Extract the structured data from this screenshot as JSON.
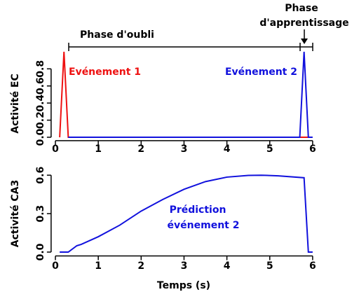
{
  "chart_data": [
    {
      "type": "line",
      "ylabel": "Activité EC",
      "xlim": [
        -0.1,
        6.1
      ],
      "xticks": [
        0,
        1,
        2,
        3,
        4,
        5,
        6
      ],
      "ylim": [
        -0.04,
        1.04
      ],
      "yticks": [
        {
          "value": 0,
          "label": "0.0"
        },
        0.2,
        0.4,
        0.6,
        0.8
      ],
      "series": [
        {
          "name": "Evénement 1",
          "color": "#ee1111",
          "x": [
            0.1,
            0.2,
            0.3,
            5.7,
            5.9
          ],
          "values": [
            0,
            1,
            0,
            0,
            0
          ]
        },
        {
          "name": "Evénement 2",
          "color": "#1111dd",
          "x": [
            0.3,
            5.7,
            5.8,
            5.9,
            6.0
          ],
          "values": [
            0,
            0,
            1,
            0,
            0
          ]
        }
      ],
      "annotations": [
        "Phase d'oubli",
        "Phase",
        "d'apprentissage"
      ]
    },
    {
      "type": "line",
      "ylabel": "Activité CA3",
      "xlabel": "Temps (s)",
      "xlim": [
        -0.1,
        6.1
      ],
      "xticks": [
        0,
        1,
        2,
        3,
        4,
        5,
        6
      ],
      "ylim": [
        -0.03,
        0.63
      ],
      "yticks": [
        {
          "value": 0,
          "label": "0.0"
        },
        0.3,
        0.6
      ],
      "series": [
        {
          "name": "Prédiction événement 2",
          "color": "#1111dd",
          "x": [
            0.1,
            0.3,
            0.5,
            0.6,
            0.8,
            1.0,
            1.5,
            2.0,
            2.5,
            3.0,
            3.5,
            4.0,
            4.5,
            4.8,
            5.2,
            5.8,
            5.9,
            6.0
          ],
          "values": [
            0,
            0,
            0.05,
            0.06,
            0.09,
            0.12,
            0.21,
            0.32,
            0.41,
            0.49,
            0.55,
            0.585,
            0.598,
            0.6,
            0.595,
            0.58,
            0,
            0
          ]
        }
      ],
      "annotations": [
        "Prédiction",
        "événement 2"
      ]
    }
  ]
}
